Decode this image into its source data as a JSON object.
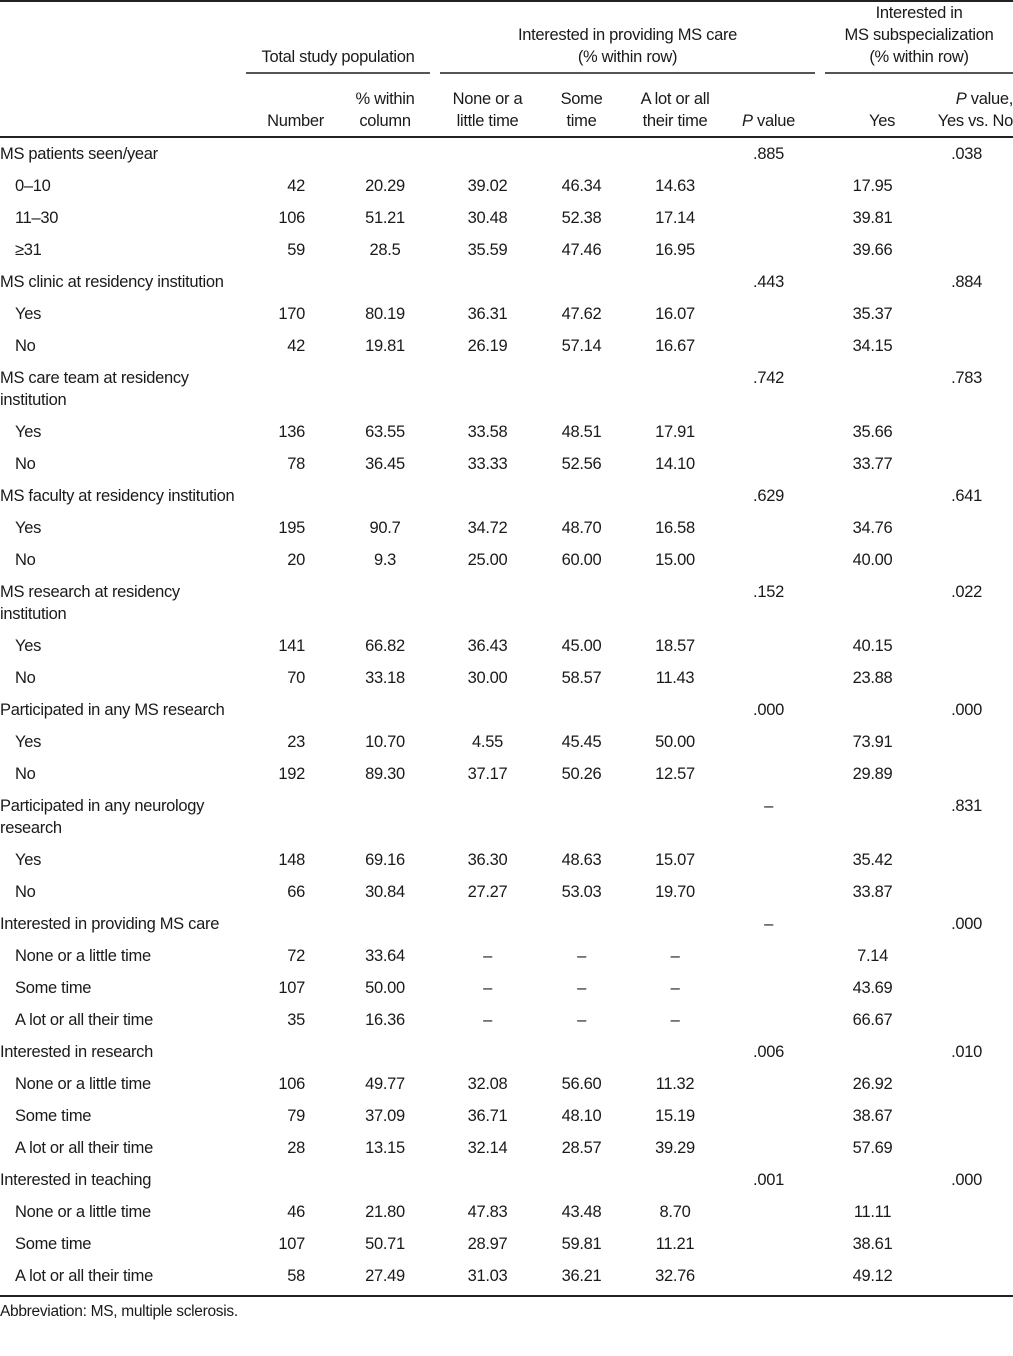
{
  "header": {
    "group_total": "Total study population",
    "group_care_line1": "Interested in providing MS care",
    "group_care_line2": "(% within row)",
    "group_sub_line1": "Interested in",
    "group_sub_line2": "MS subspecialization",
    "group_sub_line3": "(% within row)",
    "col_number": "Number",
    "col_pct_1": "% within",
    "col_pct_2": "column",
    "col_none_1": "None or a",
    "col_none_2": "little time",
    "col_some_1": "Some",
    "col_some_2": "time",
    "col_alot_1": "A lot or all",
    "col_alot_2": "their time",
    "col_p_italic": "P",
    "col_p_rest": " value",
    "col_yes": "Yes",
    "col_p2_italic": "P",
    "col_p2_rest": " value,",
    "col_p2_2": "Yes vs. No"
  },
  "rows": [
    {
      "label": "MS patients seen/year",
      "indent": false,
      "values": [
        "",
        "",
        "",
        "",
        "",
        ".885",
        "",
        ".038"
      ]
    },
    {
      "label": "0–10",
      "indent": true,
      "values": [
        "42",
        "20.29",
        "39.02",
        "46.34",
        "14.63",
        "",
        "17.95",
        ""
      ]
    },
    {
      "label": "11–30",
      "indent": true,
      "values": [
        "106",
        "51.21",
        "30.48",
        "52.38",
        "17.14",
        "",
        "39.81",
        ""
      ]
    },
    {
      "label": "≥31",
      "indent": true,
      "values": [
        "59",
        "28.5",
        "35.59",
        "47.46",
        "16.95",
        "",
        "39.66",
        ""
      ]
    },
    {
      "label": "MS clinic at residency institution",
      "indent": false,
      "values": [
        "",
        "",
        "",
        "",
        "",
        ".443",
        "",
        ".884"
      ]
    },
    {
      "label": "Yes",
      "indent": true,
      "values": [
        "170",
        "80.19",
        "36.31",
        "47.62",
        "16.07",
        "",
        "35.37",
        ""
      ]
    },
    {
      "label": "No",
      "indent": true,
      "values": [
        "42",
        "19.81",
        "26.19",
        "57.14",
        "16.67",
        "",
        "34.15",
        ""
      ]
    },
    {
      "label": "MS care team at residency institution",
      "indent": false,
      "values": [
        "",
        "",
        "",
        "",
        "",
        ".742",
        "",
        ".783"
      ]
    },
    {
      "label": "Yes",
      "indent": true,
      "values": [
        "136",
        "63.55",
        "33.58",
        "48.51",
        "17.91",
        "",
        "35.66",
        ""
      ]
    },
    {
      "label": "No",
      "indent": true,
      "values": [
        "78",
        "36.45",
        "33.33",
        "52.56",
        "14.10",
        "",
        "33.77",
        ""
      ]
    },
    {
      "label": "MS faculty at residency institution",
      "indent": false,
      "values": [
        "",
        "",
        "",
        "",
        "",
        ".629",
        "",
        ".641"
      ]
    },
    {
      "label": "Yes",
      "indent": true,
      "values": [
        "195",
        "90.7",
        "34.72",
        "48.70",
        "16.58",
        "",
        "34.76",
        ""
      ]
    },
    {
      "label": "No",
      "indent": true,
      "values": [
        "20",
        "9.3",
        "25.00",
        "60.00",
        "15.00",
        "",
        "40.00",
        ""
      ]
    },
    {
      "label": "MS research at residency institution",
      "indent": false,
      "values": [
        "",
        "",
        "",
        "",
        "",
        ".152",
        "",
        ".022"
      ]
    },
    {
      "label": "Yes",
      "indent": true,
      "values": [
        "141",
        "66.82",
        "36.43",
        "45.00",
        "18.57",
        "",
        "40.15",
        ""
      ]
    },
    {
      "label": "No",
      "indent": true,
      "values": [
        "70",
        "33.18",
        "30.00",
        "58.57",
        "11.43",
        "",
        "23.88",
        ""
      ]
    },
    {
      "label": "Participated in any MS research",
      "indent": false,
      "values": [
        "",
        "",
        "",
        "",
        "",
        ".000",
        "",
        ".000"
      ]
    },
    {
      "label": "Yes",
      "indent": true,
      "values": [
        "23",
        "10.70",
        "4.55",
        "45.45",
        "50.00",
        "",
        "73.91",
        ""
      ]
    },
    {
      "label": "No",
      "indent": true,
      "values": [
        "192",
        "89.30",
        "37.17",
        "50.26",
        "12.57",
        "",
        "29.89",
        ""
      ]
    },
    {
      "label": "Participated in any neurology research",
      "indent": false,
      "values": [
        "",
        "",
        "",
        "",
        "",
        "–",
        "",
        ".831"
      ]
    },
    {
      "label": "Yes",
      "indent": true,
      "values": [
        "148",
        "69.16",
        "36.30",
        "48.63",
        "15.07",
        "",
        "35.42",
        ""
      ]
    },
    {
      "label": "No",
      "indent": true,
      "values": [
        "66",
        "30.84",
        "27.27",
        "53.03",
        "19.70",
        "",
        "33.87",
        ""
      ]
    },
    {
      "label": "Interested in providing MS care",
      "indent": false,
      "values": [
        "",
        "",
        "",
        "",
        "",
        "–",
        "",
        ".000"
      ]
    },
    {
      "label": "None or a little time",
      "indent": true,
      "values": [
        "72",
        "33.64",
        "–",
        "–",
        "–",
        "",
        "7.14",
        ""
      ]
    },
    {
      "label": "Some time",
      "indent": true,
      "values": [
        "107",
        "50.00",
        "–",
        "–",
        "–",
        "",
        "43.69",
        ""
      ]
    },
    {
      "label": "A lot or all their time",
      "indent": true,
      "values": [
        "35",
        "16.36",
        "–",
        "–",
        "–",
        "",
        "66.67",
        ""
      ]
    },
    {
      "label": "Interested in research",
      "indent": false,
      "values": [
        "",
        "",
        "",
        "",
        "",
        ".006",
        "",
        ".010"
      ]
    },
    {
      "label": "None or a little time",
      "indent": true,
      "values": [
        "106",
        "49.77",
        "32.08",
        "56.60",
        "11.32",
        "",
        "26.92",
        ""
      ]
    },
    {
      "label": "Some time",
      "indent": true,
      "values": [
        "79",
        "37.09",
        "36.71",
        "48.10",
        "15.19",
        "",
        "38.67",
        ""
      ]
    },
    {
      "label": "A lot or all their time",
      "indent": true,
      "values": [
        "28",
        "13.15",
        "32.14",
        "28.57",
        "39.29",
        "",
        "57.69",
        ""
      ]
    },
    {
      "label": "Interested in teaching",
      "indent": false,
      "values": [
        "",
        "",
        "",
        "",
        "",
        ".001",
        "",
        ".000"
      ]
    },
    {
      "label": "None or a little time",
      "indent": true,
      "values": [
        "46",
        "21.80",
        "47.83",
        "43.48",
        "8.70",
        "",
        "11.11",
        ""
      ]
    },
    {
      "label": "Some time",
      "indent": true,
      "values": [
        "107",
        "50.71",
        "28.97",
        "59.81",
        "11.21",
        "",
        "38.61",
        ""
      ]
    },
    {
      "label": "A lot or all their time",
      "indent": true,
      "values": [
        "58",
        "27.49",
        "31.03",
        "36.21",
        "32.76",
        "",
        "49.12",
        ""
      ]
    }
  ],
  "footnote": "Abbreviation: MS, multiple sclerosis."
}
